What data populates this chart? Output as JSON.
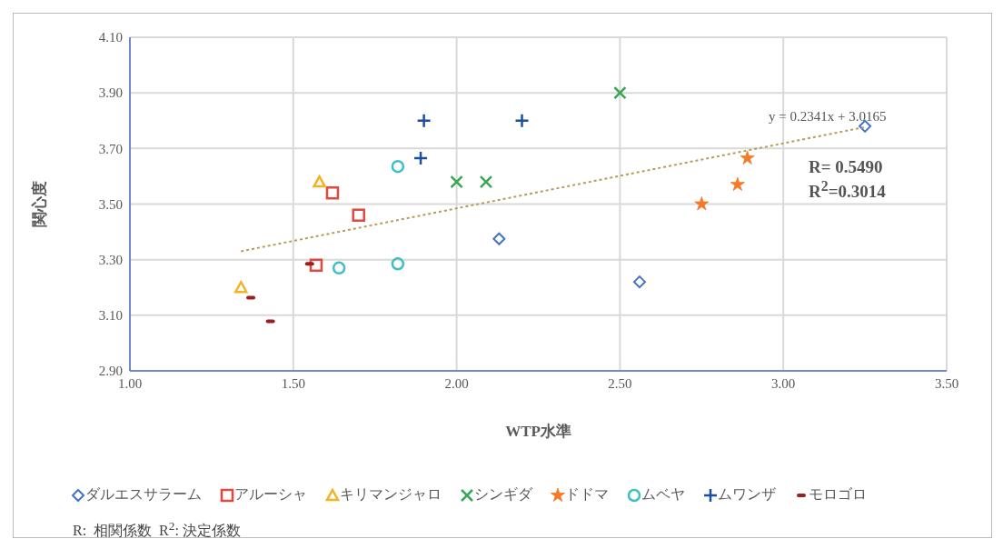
{
  "chart_data": {
    "type": "scatter",
    "xlabel": "WTP水準",
    "ylabel": "関心度",
    "xlim": [
      1.0,
      3.5
    ],
    "xticks": [
      {
        "value": 1.0,
        "label": "1.00"
      },
      {
        "value": 1.5,
        "label": "1.50"
      },
      {
        "value": 2.0,
        "label": "2.00"
      },
      {
        "value": 2.5,
        "label": "2.50"
      },
      {
        "value": 3.0,
        "label": "3.00"
      },
      {
        "value": 3.5,
        "label": "3.50"
      }
    ],
    "ylim": [
      2.9,
      4.1
    ],
    "yticks": [
      {
        "value": 2.9,
        "label": "2.90"
      },
      {
        "value": 3.1,
        "label": "3.10"
      },
      {
        "value": 3.3,
        "label": "3.30"
      },
      {
        "value": 3.5,
        "label": "3.50"
      },
      {
        "value": 3.7,
        "label": "3.70"
      },
      {
        "value": 3.9,
        "label": "3.90"
      },
      {
        "value": 4.1,
        "label": "4.10"
      }
    ],
    "grid": true,
    "legend": "bottom",
    "series": [
      {
        "name": "ダルエスサラーム",
        "color": "#4472c4",
        "marker": "diamond",
        "x": [
          2.13,
          2.56,
          3.25
        ],
        "values": [
          3.375,
          3.22,
          3.78
        ]
      },
      {
        "name": "アルーシャ",
        "color": "#e2483b",
        "marker": "square",
        "x": [
          1.62,
          1.7,
          1.57
        ],
        "values": [
          3.54,
          3.46,
          3.28
        ]
      },
      {
        "name": "キリマンジャロ",
        "color": "#f4b324",
        "marker": "triangle",
        "x": [
          1.58,
          1.34
        ],
        "values": [
          3.58,
          3.2
        ]
      },
      {
        "name": "シンギダ",
        "color": "#3aa655",
        "marker": "cross",
        "x": [
          2.0,
          2.09,
          2.5
        ],
        "values": [
          3.58,
          3.58,
          3.9
        ]
      },
      {
        "name": "ドドマ",
        "color": "#f47a2a",
        "marker": "star",
        "x": [
          2.75,
          2.86,
          2.89
        ],
        "values": [
          3.5,
          3.57,
          3.665
        ]
      },
      {
        "name": "ムベヤ",
        "color": "#3fbfc2",
        "marker": "circle",
        "x": [
          1.82,
          1.64,
          1.82
        ],
        "values": [
          3.635,
          3.27,
          3.285
        ]
      },
      {
        "name": "ムワンザ",
        "color": "#1f4e9e",
        "marker": "plus",
        "x": [
          1.9,
          2.2,
          1.89
        ],
        "values": [
          3.8,
          3.8,
          3.665
        ]
      },
      {
        "name": "モロゴロ",
        "color": "#9c1f1f",
        "x": [
          1.55,
          1.37,
          1.43
        ],
        "values": [
          3.285,
          3.163,
          3.078
        ]
      },
      {
        "type": "line",
        "color": "#b89c5a",
        "line_style": "dotted",
        "marker": "none",
        "x": [
          1.34,
          3.25
        ],
        "values": [
          3.33,
          3.777
        ]
      }
    ],
    "annotations": [
      "y = 0.2341x + 3.0165",
      "R= 0.5490",
      "R$^{2}$=0.3014",
      "R:  相関係数  R$^{2}$: 決定係数"
    ]
  }
}
